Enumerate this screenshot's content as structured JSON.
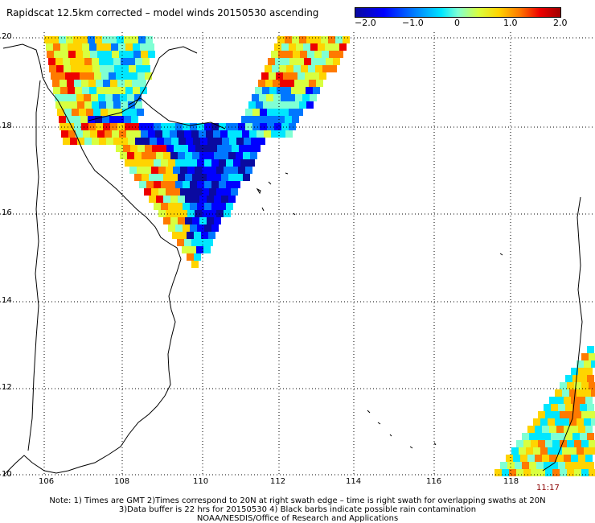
{
  "title": "Rapidscat 12.5km corrected – model winds 20150530 ascending",
  "colorbar": {
    "ticks": [
      "−2.0",
      "−1.0",
      "0",
      "1.0",
      "2.0"
    ],
    "colors": [
      "#0a0aa0",
      "#0000ff",
      "#0077ff",
      "#00e6ff",
      "#7fffd4",
      "#d9ff3f",
      "#ffd400",
      "#ff7a00",
      "#ee0000",
      "#a00000"
    ]
  },
  "axes": {
    "latitude_labels": [
      "20",
      "18",
      "16",
      "14",
      "12",
      "10"
    ],
    "longitude_labels": [
      "106",
      "108",
      "110",
      "112",
      "114",
      "116",
      "118"
    ]
  },
  "swath_time": "11:17",
  "notes": [
    "Note: 1) Times are GMT 2)Times correspond to 20N at right swath edge – time is right swath for overlapping swaths at 20N",
    "3)Data buffer is 22 hrs for 20150530 4) Black barbs indicate possible rain contamination",
    "NOAA/NESDIS/Office of Research and Applications"
  ]
}
